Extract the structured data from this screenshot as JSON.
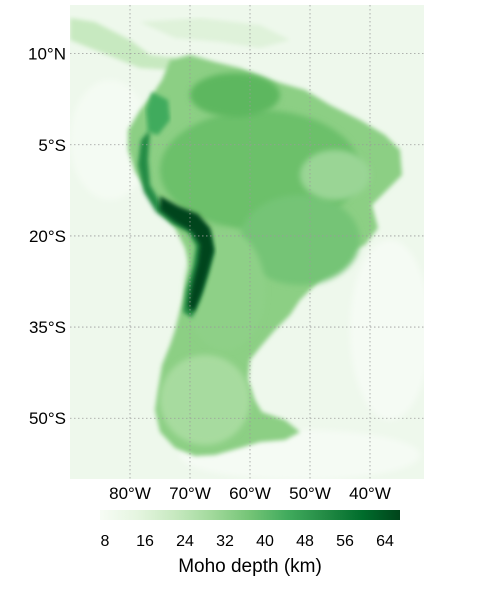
{
  "map": {
    "lat_labels": [
      "10°N",
      "5°S",
      "20°S",
      "35°S",
      "50°S"
    ],
    "lon_labels": [
      "80°W",
      "70°W",
      "60°W",
      "50°W",
      "40°W"
    ],
    "lat_values": [
      10,
      -5,
      -20,
      -35,
      -50
    ],
    "lon_values": [
      -80,
      -70,
      -60,
      -50,
      -40
    ],
    "lon_range": [
      -90,
      -31
    ],
    "lat_range": [
      -60,
      18
    ],
    "gridlines": true,
    "colormap": "Greens"
  },
  "colorbar": {
    "ticks": [
      "8",
      "16",
      "24",
      "32",
      "40",
      "48",
      "56",
      "64"
    ],
    "tick_values": [
      8,
      16,
      24,
      32,
      40,
      48,
      56,
      64
    ],
    "range": [
      7,
      67
    ],
    "label": "Moho depth (km)",
    "colors": [
      "#f7fcf5",
      "#e5f5e0",
      "#c7e9c0",
      "#a1d99b",
      "#74c476",
      "#41ab5d",
      "#238b45",
      "#006d2c",
      "#00441b"
    ]
  }
}
